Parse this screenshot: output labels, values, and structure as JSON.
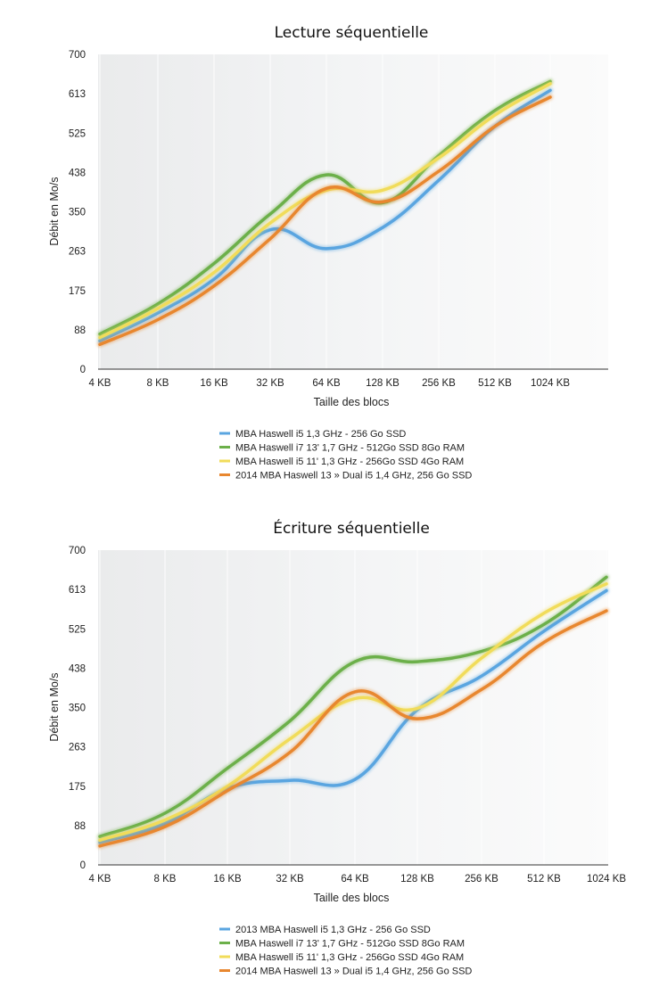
{
  "chart_data": [
    {
      "type": "line",
      "title": "Lecture séquentielle",
      "xlabel": "Taille des blocs",
      "ylabel": "Débit en Mo/s",
      "ylim": [
        0,
        700
      ],
      "yticks": [
        "0",
        "88",
        "175",
        "263",
        "350",
        "438",
        "525",
        "613",
        "700"
      ],
      "categories": [
        "4 KB",
        "8 KB",
        "16 KB",
        "32 KB",
        "64 KB",
        "128 KB",
        "256 KB",
        "512 KB",
        "1024 KB"
      ],
      "legend": "bottom",
      "series": [
        {
          "name": "MBA Haswell i5 1,3 GHz - 256 Go SSD",
          "color": "#5AA5E0",
          "values": [
            63,
            125,
            200,
            310,
            268,
            315,
            420,
            540,
            620
          ]
        },
        {
          "name": "MBA Haswell i7 13' 1,7 GHz - 512Go SSD 8Go RAM",
          "color": "#6CB04A",
          "values": [
            78,
            145,
            235,
            345,
            432,
            370,
            475,
            575,
            640
          ]
        },
        {
          "name": "MBA Haswell i5 11' 1,3 GHz - 256Go SSD 4Go RAM",
          "color": "#F1DC5A",
          "values": [
            70,
            135,
            215,
            325,
            398,
            398,
            470,
            565,
            635
          ]
        },
        {
          "name": "2014 MBA Haswell 13 » Dual i5 1,4 GHz, 256 Go SSD",
          "color": "#E8872F",
          "values": [
            55,
            110,
            185,
            290,
            402,
            372,
            440,
            540,
            605
          ]
        }
      ]
    },
    {
      "type": "line",
      "title": "Écriture séquentielle",
      "xlabel": "Taille des blocs",
      "ylabel": "Débit en Mo/s",
      "ylim": [
        0,
        700
      ],
      "yticks": [
        "0",
        "88",
        "175",
        "263",
        "350",
        "438",
        "525",
        "613",
        "700"
      ],
      "categories": [
        "4 KB",
        "8 KB",
        "16 KB",
        "32 KB",
        "64 KB",
        "128 KB",
        "256 KB",
        "512 KB",
        "1024 KB"
      ],
      "legend": "bottom",
      "series": [
        {
          "name": "2013 MBA Haswell i5 1,3 GHz - 256 Go SSD",
          "color": "#5AA5E0",
          "values": [
            50,
            92,
            170,
            188,
            190,
            345,
            420,
            520,
            610
          ]
        },
        {
          "name": "MBA Haswell i7 13' 1,7 GHz - 512Go SSD 8Go RAM",
          "color": "#6CB04A",
          "values": [
            63,
            115,
            215,
            320,
            452,
            452,
            475,
            535,
            640
          ]
        },
        {
          "name": "MBA Haswell i5 11' 1,3 GHz - 256Go SSD 4Go RAM",
          "color": "#F1DC5A",
          "values": [
            55,
            100,
            175,
            280,
            370,
            348,
            460,
            560,
            625
          ]
        },
        {
          "name": "2014 MBA Haswell 13 » Dual i5 1,4 GHz, 256 Go SSD",
          "color": "#E8872F",
          "values": [
            42,
            85,
            165,
            250,
            385,
            325,
            390,
            495,
            565
          ]
        }
      ]
    }
  ]
}
